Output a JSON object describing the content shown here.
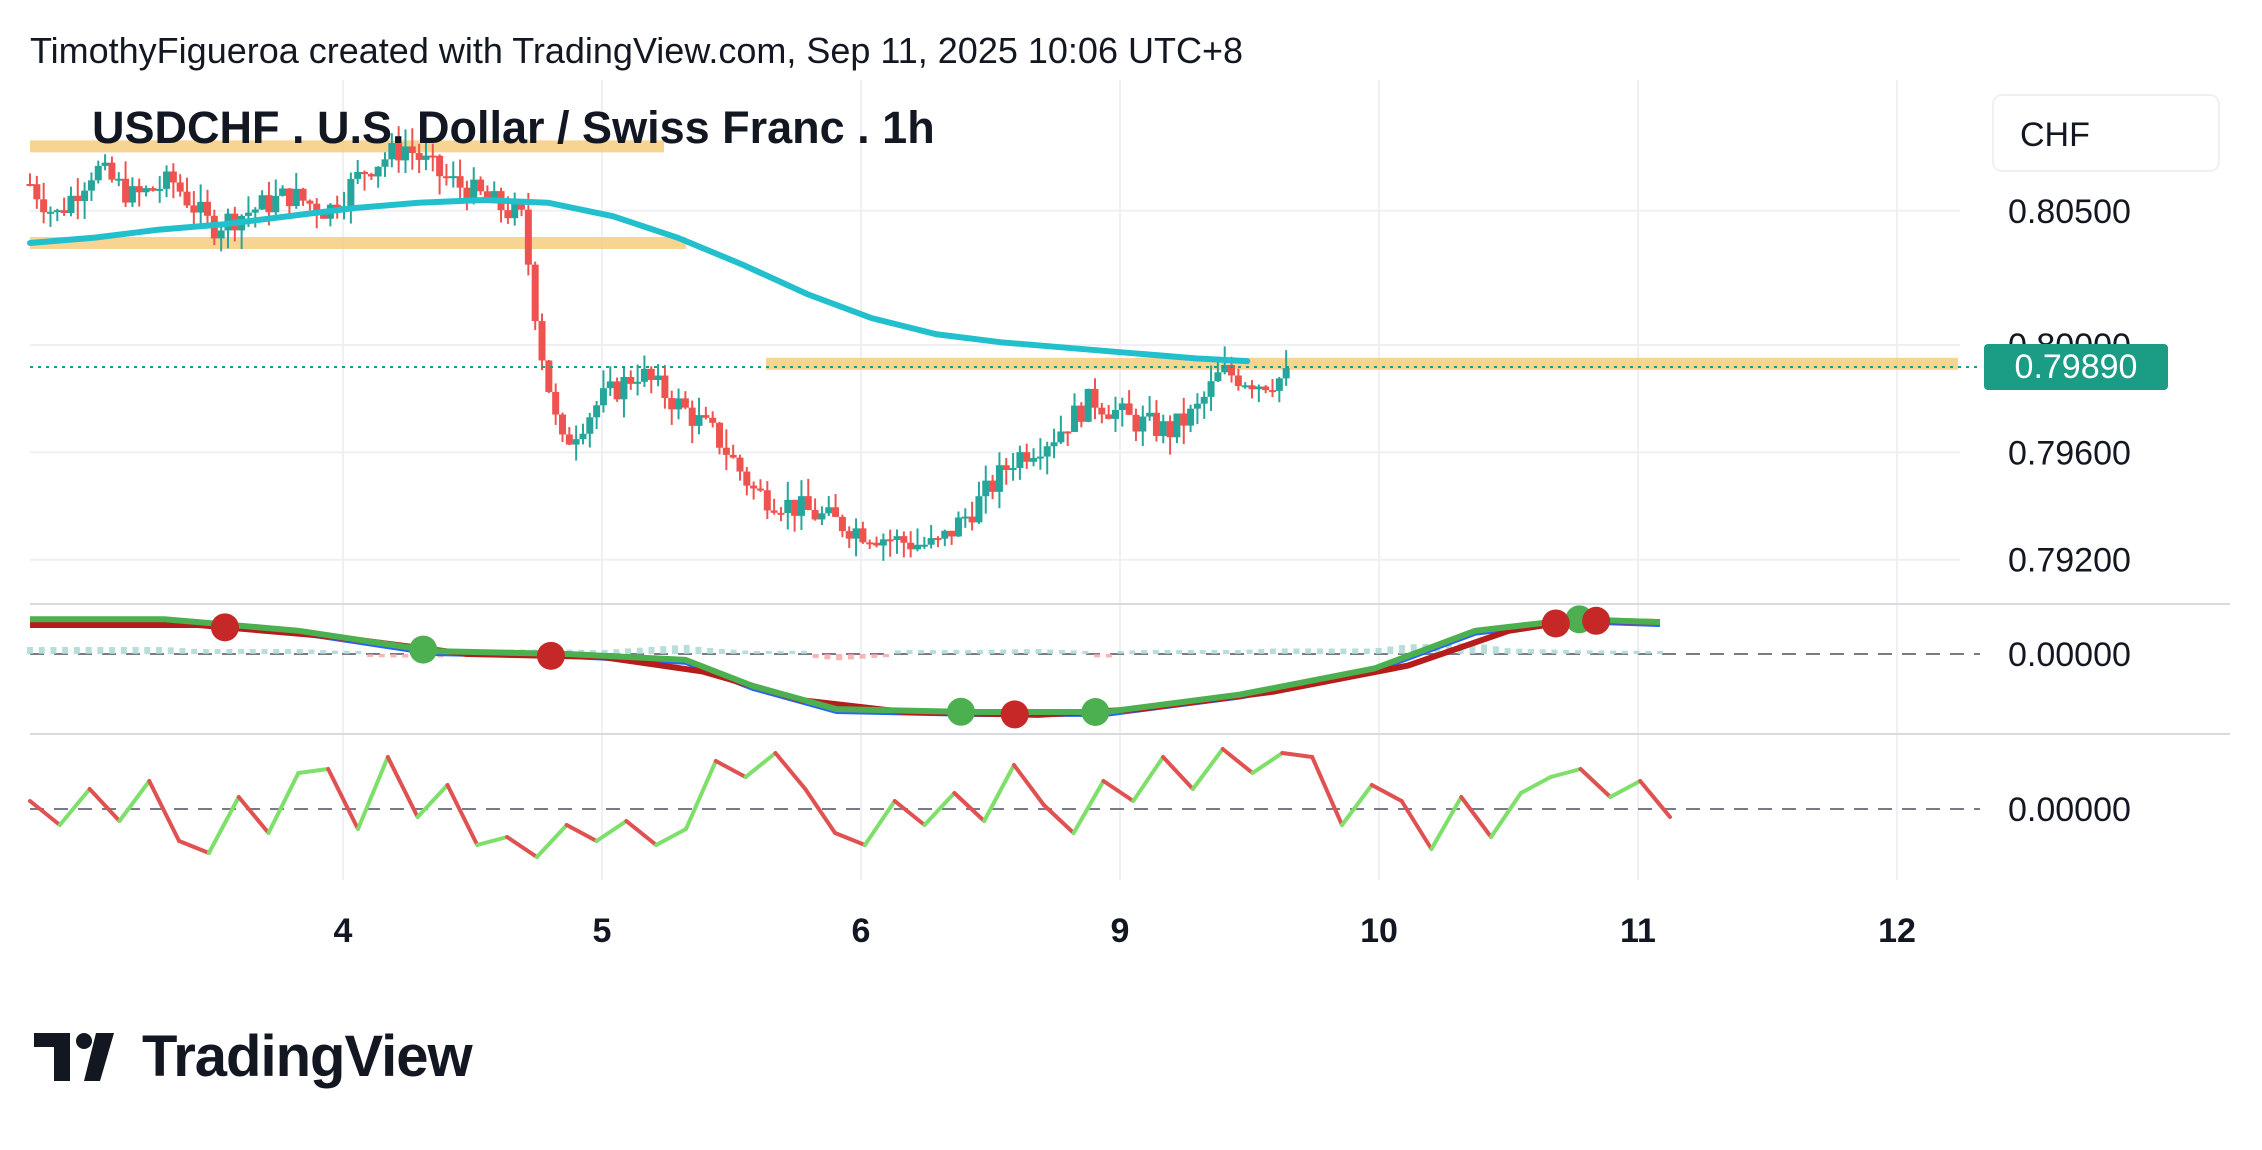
{
  "header": {
    "attribution": "TimothyFigueroa created with TradingView.com, Sep 11, 2025 10:06 UTC+8",
    "title": "USDCHF . U.S. Dollar / Swiss Franc . 1h",
    "currency": "CHF",
    "current_price": "0.79890",
    "logo": "TradingView"
  },
  "chart_data": {
    "type": "candlestick",
    "title": "USDCHF . U.S. Dollar / Swiss Franc . 1h",
    "x_tick_labels": [
      "4",
      "5",
      "6",
      "9",
      "10",
      "11",
      "12"
    ],
    "y_tick_labels": [
      "0.80500",
      "0.80000",
      "0.79600",
      "0.79200"
    ],
    "ylim": [
      0.7905,
      0.8095
    ],
    "current_price": 0.7989,
    "resistance_zones": [
      {
        "from": "3",
        "to": "5.5",
        "level": 0.8074
      },
      {
        "from": "3",
        "to": "5.6",
        "level": 0.8038
      },
      {
        "from": "5.95",
        "to": "12.5",
        "level": 0.7993
      }
    ],
    "moving_average_path": [
      [
        0,
        0.8038
      ],
      [
        0.25,
        0.804
      ],
      [
        0.5,
        0.8043
      ],
      [
        0.75,
        0.8045
      ],
      [
        1,
        0.8048
      ],
      [
        1.25,
        0.8051
      ],
      [
        1.5,
        0.8053
      ],
      [
        1.75,
        0.8054
      ],
      [
        2,
        0.8053
      ],
      [
        2.25,
        0.8048
      ],
      [
        2.5,
        0.804
      ],
      [
        2.75,
        0.803
      ],
      [
        3,
        0.8019
      ],
      [
        3.25,
        0.801
      ],
      [
        3.5,
        0.8004
      ],
      [
        3.75,
        0.8001
      ],
      [
        4,
        0.7999
      ],
      [
        4.25,
        0.7997
      ],
      [
        4.5,
        0.7995
      ],
      [
        4.7,
        0.7994
      ]
    ],
    "price_path": [
      [
        0,
        0.806
      ],
      [
        0.1,
        0.8048
      ],
      [
        0.25,
        0.8066
      ],
      [
        0.4,
        0.8055
      ],
      [
        0.55,
        0.8061
      ],
      [
        0.7,
        0.8044
      ],
      [
        0.85,
        0.805
      ],
      [
        1,
        0.8056
      ],
      [
        1.15,
        0.805
      ],
      [
        1.3,
        0.8066
      ],
      [
        1.45,
        0.8074
      ],
      [
        1.6,
        0.8062
      ],
      [
        1.75,
        0.8055
      ],
      [
        1.9,
        0.8047
      ],
      [
        1.97,
        0.8
      ],
      [
        2.05,
        0.7962
      ],
      [
        2.2,
        0.7979
      ],
      [
        2.35,
        0.799
      ],
      [
        2.5,
        0.7978
      ],
      [
        2.65,
        0.7966
      ],
      [
        2.8,
        0.7945
      ],
      [
        3,
        0.7938
      ],
      [
        3.2,
        0.7931
      ],
      [
        3.35,
        0.7927
      ],
      [
        3.5,
        0.7925
      ],
      [
        3.65,
        0.794
      ],
      [
        3.8,
        0.7958
      ],
      [
        3.95,
        0.7966
      ],
      [
        4.1,
        0.798
      ],
      [
        4.25,
        0.7972
      ],
      [
        4.4,
        0.7968
      ],
      [
        4.5,
        0.7975
      ],
      [
        4.6,
        0.799
      ],
      [
        4.75,
        0.7986
      ],
      [
        4.85,
        0.7988
      ]
    ],
    "macd_panel": {
      "zero_label": "0.00000",
      "macd_line": [
        [
          0,
          0.6
        ],
        [
          0.4,
          0.6
        ],
        [
          0.8,
          0.4
        ],
        [
          1.2,
          0.05
        ],
        [
          1.6,
          0.0
        ],
        [
          1.95,
          -0.1
        ],
        [
          2.15,
          -0.55
        ],
        [
          2.4,
          -0.95
        ],
        [
          2.8,
          -1.0
        ],
        [
          3.2,
          -1.0
        ],
        [
          3.6,
          -0.7
        ],
        [
          4.0,
          -0.25
        ],
        [
          4.3,
          0.4
        ],
        [
          4.6,
          0.6
        ],
        [
          4.85,
          0.55
        ]
      ],
      "signal_line": [
        [
          0,
          0.5
        ],
        [
          0.5,
          0.5
        ],
        [
          0.9,
          0.3
        ],
        [
          1.3,
          0.0
        ],
        [
          1.7,
          -0.05
        ],
        [
          2.0,
          -0.3
        ],
        [
          2.3,
          -0.8
        ],
        [
          2.6,
          -1.0
        ],
        [
          3.0,
          -1.05
        ],
        [
          3.3,
          -0.95
        ],
        [
          3.7,
          -0.65
        ],
        [
          4.1,
          -0.2
        ],
        [
          4.4,
          0.4
        ],
        [
          4.6,
          0.58
        ],
        [
          4.85,
          0.55
        ]
      ],
      "bearish_cross_x": [
        0.58,
        1.55,
        2.93,
        4.54,
        4.66
      ],
      "bullish_cross_x": [
        1.17,
        2.77,
        3.17,
        4.61
      ]
    },
    "oscillator_panel": {
      "zero_label": "0.00000",
      "values": [
        0.2,
        -0.4,
        0.5,
        -0.3,
        0.7,
        -0.8,
        -1.1,
        0.3,
        -0.6,
        0.9,
        1.0,
        -0.5,
        1.3,
        -0.2,
        0.6,
        -0.9,
        -0.7,
        -1.2,
        -0.4,
        -0.8,
        -0.3,
        -0.9,
        -0.5,
        1.2,
        0.8,
        1.4,
        0.5,
        -0.6,
        -0.9,
        0.2,
        -0.4,
        0.4,
        -0.3,
        1.1,
        0.1,
        -0.6,
        0.7,
        0.2,
        1.3,
        0.5,
        1.5,
        0.9,
        1.4,
        1.3,
        -0.4,
        0.6,
        0.2,
        -1.0,
        0.3,
        -0.7,
        0.4,
        0.8,
        1.0,
        0.3,
        0.7,
        -0.2
      ]
    },
    "colors": {
      "up_candle": "#26a69a",
      "down_candle": "#ef5350",
      "moving_average": "#21c0cc",
      "zone": "#f7cc7f",
      "macd": "#4caf50",
      "signal": "#b71c1c",
      "blue_line": "#2962ff",
      "osc_up": "#7ee06a",
      "osc_down": "#e05252"
    }
  }
}
